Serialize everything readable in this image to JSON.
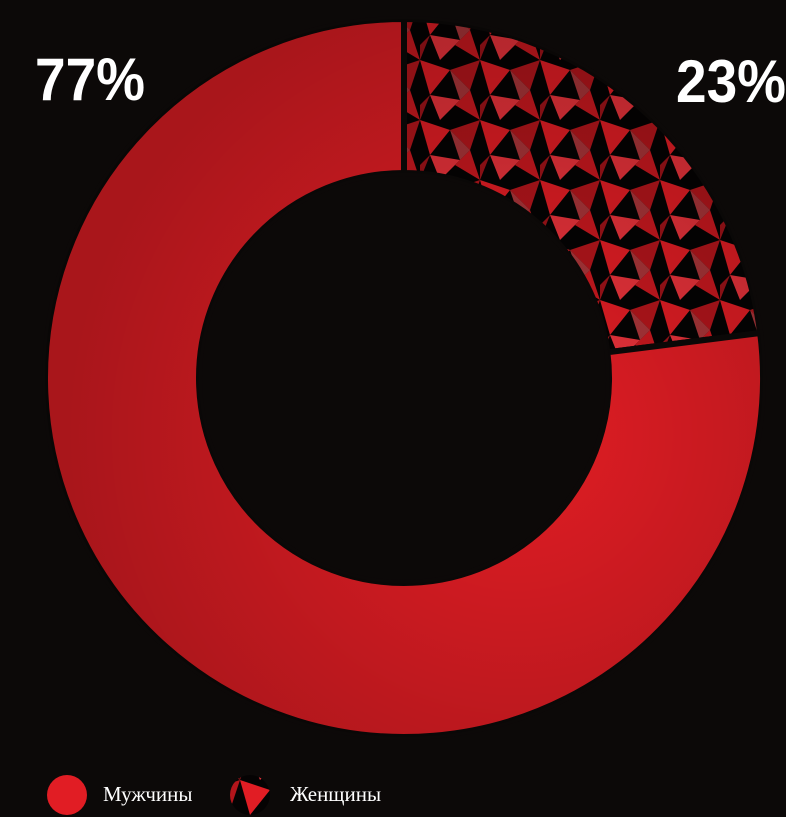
{
  "chart_data": {
    "type": "donut",
    "categories": [
      "Мужчины",
      "Женщины"
    ],
    "values": [
      77,
      23
    ],
    "value_labels": [
      "77%",
      "23%"
    ],
    "colors": [
      "#e11d24",
      "#e11d24"
    ],
    "patterned": [
      false,
      true
    ]
  }
}
